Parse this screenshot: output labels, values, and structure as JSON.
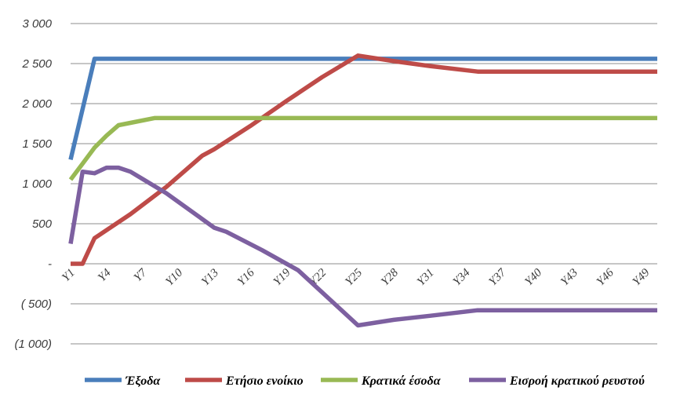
{
  "chart_data": {
    "type": "line",
    "title": "",
    "xlabel": "",
    "ylabel": "",
    "ylim": [
      -1000,
      3000
    ],
    "y_ticks": [
      {
        "value": 3000,
        "label": "3 000"
      },
      {
        "value": 2500,
        "label": "2 500"
      },
      {
        "value": 2000,
        "label": "2 000"
      },
      {
        "value": 1500,
        "label": "1 500"
      },
      {
        "value": 1000,
        "label": "1 000"
      },
      {
        "value": 500,
        "label": "500"
      },
      {
        "value": 0,
        "label": "-"
      },
      {
        "value": -500,
        "label": "( 500)"
      },
      {
        "value": -1000,
        "label": "(1 000)"
      }
    ],
    "x_tick_labels": [
      "Y1",
      "Y4",
      "Y7",
      "Y10",
      "Y13",
      "Y16",
      "Y19",
      "Y22",
      "Y25",
      "Y28",
      "Y31",
      "Y34",
      "Y37",
      "Y40",
      "Y43",
      "Y46",
      "Y49"
    ],
    "x_tick_positions": [
      1,
      4,
      7,
      10,
      13,
      16,
      19,
      22,
      25,
      28,
      31,
      34,
      37,
      40,
      43,
      46,
      49
    ],
    "xlim": [
      1,
      50
    ],
    "grid": true,
    "legend_position": "bottom",
    "series": [
      {
        "name": "Έξοδα",
        "color": "#4a7ebb",
        "points": [
          [
            1,
            1300
          ],
          [
            3,
            2560
          ],
          [
            50,
            2560
          ]
        ]
      },
      {
        "name": "Ετήσιο ενοίκιο",
        "color": "#be4b48",
        "points": [
          [
            1,
            0
          ],
          [
            2,
            0
          ],
          [
            3,
            320
          ],
          [
            6,
            620
          ],
          [
            9,
            960
          ],
          [
            12,
            1350
          ],
          [
            13,
            1430
          ],
          [
            16,
            1720
          ],
          [
            19,
            2030
          ],
          [
            22,
            2330
          ],
          [
            25,
            2600
          ],
          [
            28,
            2530
          ],
          [
            31,
            2470
          ],
          [
            35,
            2400
          ],
          [
            50,
            2400
          ]
        ]
      },
      {
        "name": "Κρατικά έσοδα",
        "color": "#98b954",
        "points": [
          [
            1,
            1050
          ],
          [
            2,
            1250
          ],
          [
            3,
            1450
          ],
          [
            4,
            1600
          ],
          [
            5,
            1730
          ],
          [
            6,
            1760
          ],
          [
            8,
            1820
          ],
          [
            50,
            1820
          ]
        ]
      },
      {
        "name": "Εισροή κρατικού ρευστού",
        "color": "#7d60a0",
        "points": [
          [
            1,
            250
          ],
          [
            2,
            1150
          ],
          [
            3,
            1130
          ],
          [
            4,
            1200
          ],
          [
            5,
            1200
          ],
          [
            6,
            1150
          ],
          [
            7,
            1060
          ],
          [
            9,
            880
          ],
          [
            13,
            450
          ],
          [
            14,
            400
          ],
          [
            17,
            170
          ],
          [
            20,
            -80
          ],
          [
            25,
            -770
          ],
          [
            28,
            -700
          ],
          [
            31,
            -650
          ],
          [
            35,
            -580
          ],
          [
            50,
            -580
          ]
        ]
      }
    ]
  }
}
